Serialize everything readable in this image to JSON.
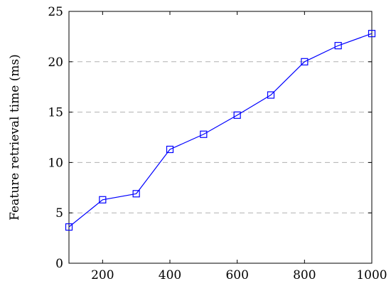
{
  "chart_data": {
    "type": "line",
    "title": "",
    "xlabel": "",
    "ylabel": "Feature retrieval time (ms)",
    "xlim": [
      100,
      1000
    ],
    "ylim": [
      0,
      25
    ],
    "x_ticks": [
      200,
      400,
      600,
      800,
      1000
    ],
    "y_ticks": [
      0,
      5,
      10,
      15,
      20,
      25
    ],
    "grid": "horizontal dashed",
    "legend": "none",
    "series": [
      {
        "marker": "square",
        "color": "#0000ff",
        "x": [
          100,
          200,
          300,
          400,
          500,
          600,
          700,
          800,
          900,
          1000
        ],
        "y": [
          3.6,
          6.3,
          6.9,
          11.3,
          12.8,
          14.7,
          16.7,
          20.0,
          21.6,
          22.8
        ]
      }
    ]
  }
}
